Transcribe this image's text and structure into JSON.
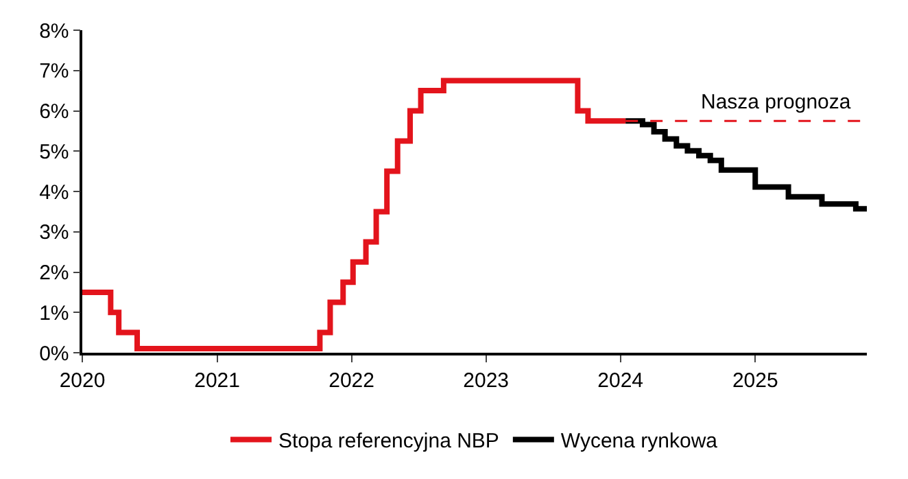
{
  "chart_data": {
    "type": "step",
    "xlim": [
      "2020-01-01",
      "2025-10-31"
    ],
    "xticks": [
      {
        "value": "2020-01-01",
        "label": "2020"
      },
      {
        "value": "2021-01-01",
        "label": "2021"
      },
      {
        "value": "2022-01-01",
        "label": "2022"
      },
      {
        "value": "2023-01-01",
        "label": "2023"
      },
      {
        "value": "2024-01-01",
        "label": "2024"
      },
      {
        "value": "2025-01-01",
        "label": "2025"
      }
    ],
    "ylim": [
      0,
      8
    ],
    "yticks": [
      {
        "value": 0,
        "label": "0%"
      },
      {
        "value": 1,
        "label": "1%"
      },
      {
        "value": 2,
        "label": "2%"
      },
      {
        "value": 3,
        "label": "3%"
      },
      {
        "value": 4,
        "label": "4%"
      },
      {
        "value": 5,
        "label": "5%"
      },
      {
        "value": 6,
        "label": "6%"
      },
      {
        "value": 7,
        "label": "7%"
      },
      {
        "value": 8,
        "label": "8%"
      }
    ],
    "legend": "bottom",
    "marker": "none",
    "series": [
      {
        "name": "Stopa referencyjna NBP",
        "color": "#e3141c",
        "x": [
          "2020-01-01",
          "2020-03-18",
          "2020-04-09",
          "2020-05-29",
          "2021-10-07",
          "2021-11-04",
          "2021-12-09",
          "2022-01-05",
          "2022-02-09",
          "2022-03-09",
          "2022-04-07",
          "2022-05-06",
          "2022-06-09",
          "2022-07-08",
          "2022-09-08",
          "2023-09-07",
          "2023-10-05",
          "2024-01-15"
        ],
        "values": [
          1.5,
          1.0,
          0.5,
          0.1,
          0.5,
          1.25,
          1.75,
          2.25,
          2.75,
          3.5,
          4.5,
          5.25,
          6.0,
          6.5,
          6.75,
          6.0,
          5.75,
          5.75
        ]
      },
      {
        "name": "Wycena rynkowa",
        "color": "#000000",
        "x": [
          "2024-01-15",
          "2024-03-01",
          "2024-04-01",
          "2024-05-01",
          "2024-06-01",
          "2024-07-01",
          "2024-08-01",
          "2024-09-01",
          "2024-10-01",
          "2025-01-01",
          "2025-04-01",
          "2025-07-01",
          "2025-10-01",
          "2025-10-31"
        ],
        "values": [
          5.75,
          5.66,
          5.48,
          5.3,
          5.13,
          5.01,
          4.89,
          4.77,
          4.53,
          4.11,
          3.87,
          3.69,
          3.57,
          3.57
        ]
      },
      {
        "type": "line",
        "line_style": "dashed",
        "color": "#e3141c",
        "x": [
          "2024-01-15",
          "2025-10-31"
        ],
        "values": [
          5.75,
          5.75
        ]
      }
    ],
    "annotations": [
      {
        "text": "Nasza prognoza",
        "x": "2025-03-01",
        "y": 5.75
      }
    ]
  }
}
